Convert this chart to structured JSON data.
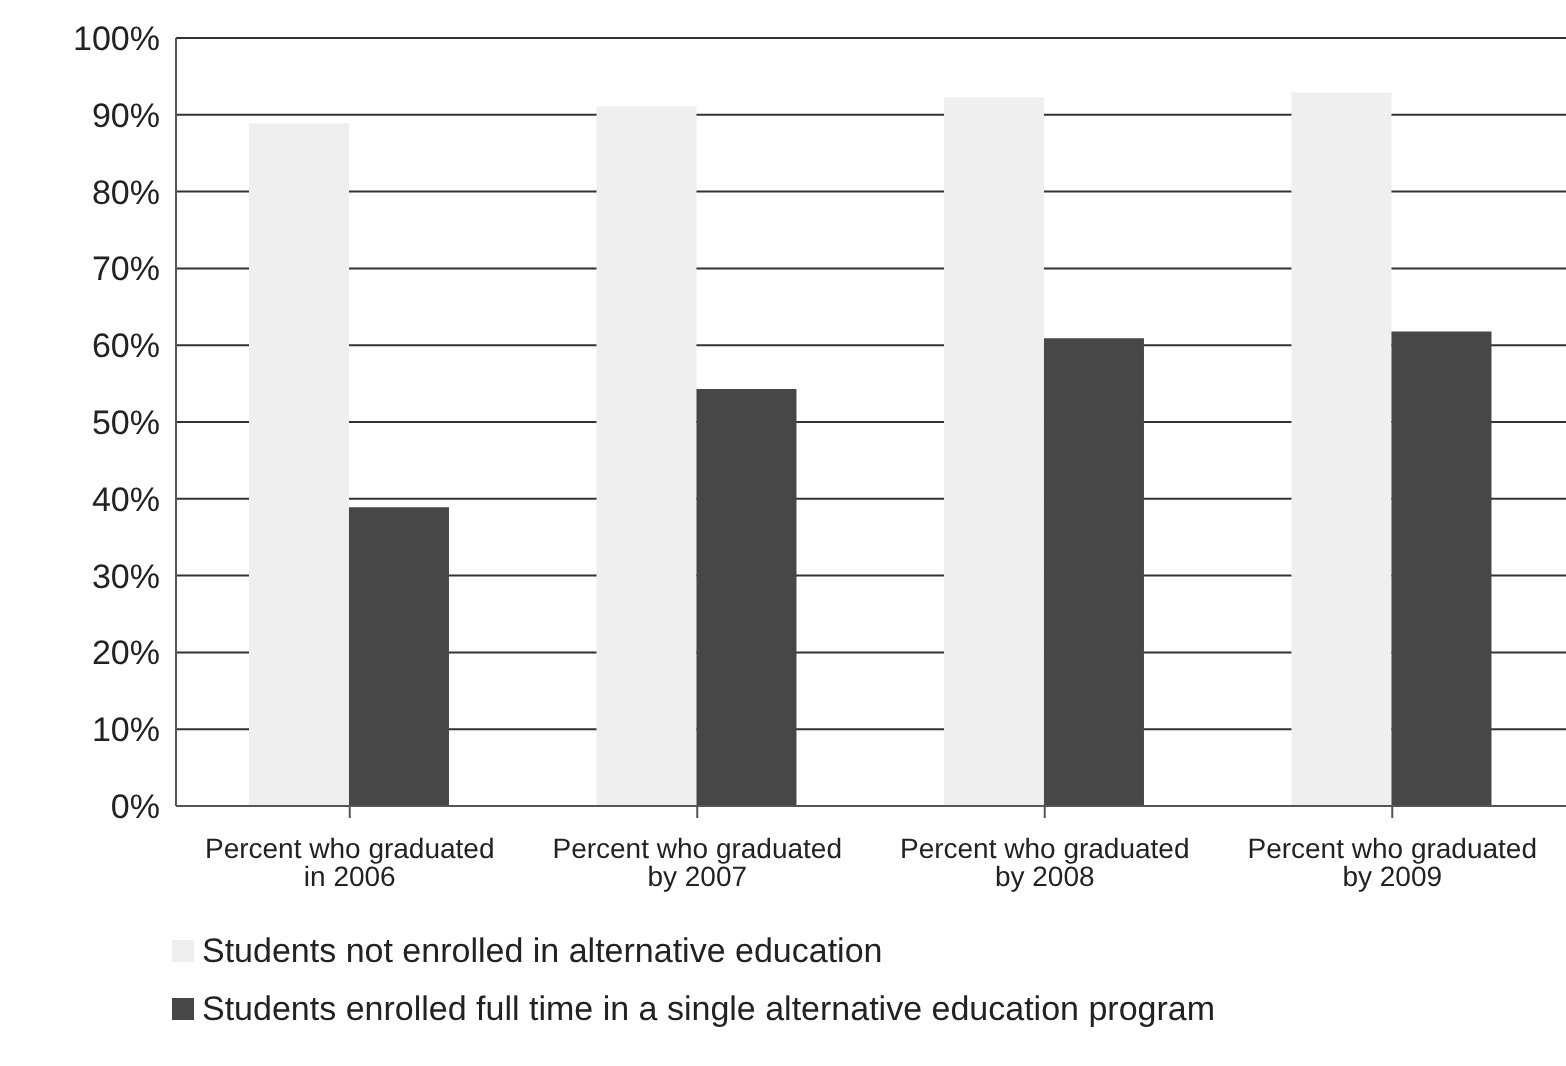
{
  "chart_data": {
    "type": "bar",
    "categories": [
      "Percent who graduated in 2006",
      "Percent who graduated by 2007",
      "Percent who graduated by 2008",
      "Percent who graduated by 2009"
    ],
    "series": [
      {
        "name": "Students not enrolled in alternative education",
        "color": "#efefef",
        "values": [
          88.9,
          91.1,
          92.3,
          92.9
        ]
      },
      {
        "name": "Students enrolled full time in a single alternative education program",
        "color": "#474747",
        "values": [
          38.9,
          54.3,
          60.9,
          61.8
        ]
      }
    ],
    "ylim": [
      0,
      100
    ],
    "yticks": [
      {
        "value": 0,
        "label": "0%"
      },
      {
        "value": 10,
        "label": "10%"
      },
      {
        "value": 20,
        "label": "20%"
      },
      {
        "value": 30,
        "label": "30%"
      },
      {
        "value": 40,
        "label": "40%"
      },
      {
        "value": 50,
        "label": "50%"
      },
      {
        "value": 60,
        "label": "60%"
      },
      {
        "value": 70,
        "label": "70%"
      },
      {
        "value": 80,
        "label": "80%"
      },
      {
        "value": 90,
        "label": "90%"
      },
      {
        "value": 100,
        "label": "100%"
      }
    ],
    "grid": "y",
    "legend": "bottom left"
  }
}
